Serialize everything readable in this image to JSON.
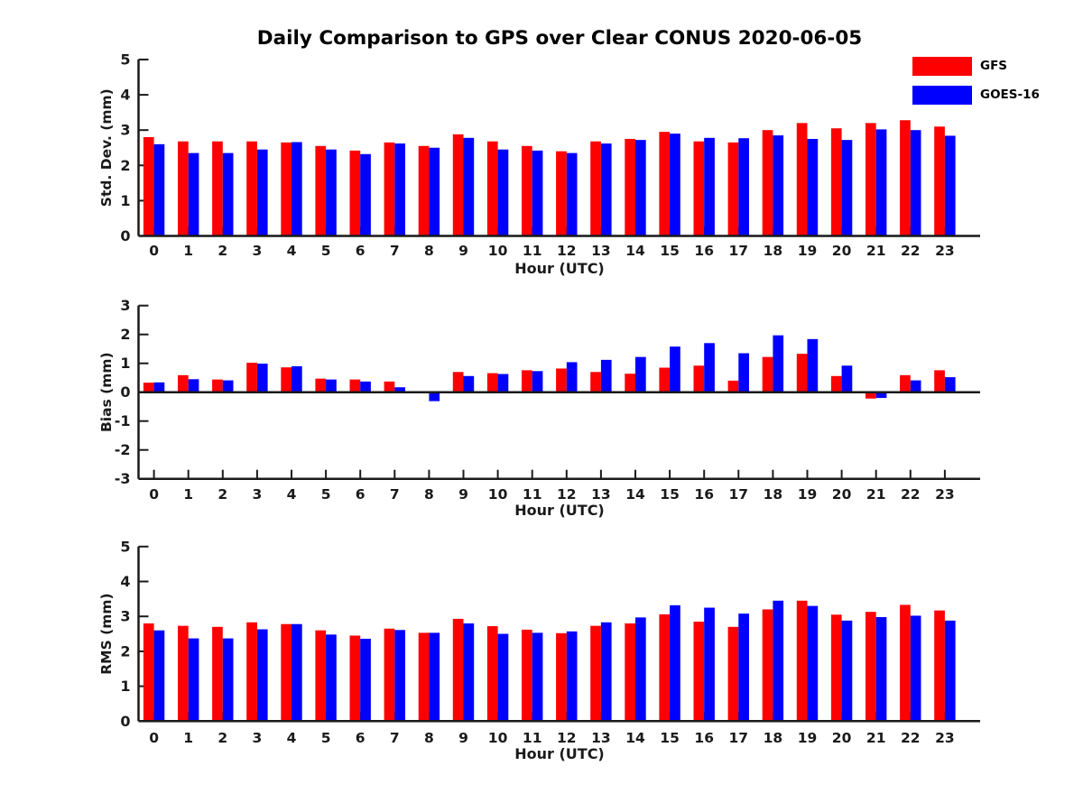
{
  "title": "Daily Comparison to GPS over Clear CONUS 2020-06-05",
  "colors": {
    "gfs": "#ff0000",
    "goes16": "#0000ff",
    "axis": "#1a1a1a",
    "background": "#ffffff"
  },
  "legend": {
    "position": "top-right",
    "items": [
      {
        "label": "GFS",
        "color": "#ff0000"
      },
      {
        "label": "GOES-16",
        "color": "#0000ff"
      }
    ]
  },
  "chart_data": [
    {
      "type": "bar",
      "panel": "stddev",
      "ylabel": "Std. Dev. (mm)",
      "xlabel": "Hour (UTC)",
      "ylim": [
        0,
        5
      ],
      "yticks": [
        0,
        1,
        2,
        3,
        4,
        5
      ],
      "grid": false,
      "categories": [
        0,
        1,
        2,
        3,
        4,
        5,
        6,
        7,
        8,
        9,
        10,
        11,
        12,
        13,
        14,
        15,
        16,
        17,
        18,
        19,
        20,
        21,
        22,
        23
      ],
      "series": [
        {
          "name": "GFS",
          "color": "#ff0000",
          "values": [
            2.8,
            2.68,
            2.68,
            2.68,
            2.65,
            2.55,
            2.42,
            2.65,
            2.55,
            2.88,
            2.68,
            2.55,
            2.4,
            2.68,
            2.75,
            2.95,
            2.68,
            2.65,
            3.0,
            3.2,
            3.05,
            3.2,
            3.28,
            3.1
          ]
        },
        {
          "name": "GOES-16",
          "color": "#0000ff",
          "values": [
            2.6,
            2.35,
            2.35,
            2.45,
            2.66,
            2.45,
            2.32,
            2.62,
            2.5,
            2.78,
            2.45,
            2.42,
            2.35,
            2.62,
            2.72,
            2.9,
            2.78,
            2.77,
            2.85,
            2.75,
            2.72,
            3.02,
            3.0,
            2.84
          ]
        }
      ]
    },
    {
      "type": "bar",
      "panel": "bias",
      "ylabel": "Bias (mm)",
      "xlabel": "Hour (UTC)",
      "ylim": [
        -3,
        3
      ],
      "yticks": [
        -3,
        -2,
        -1,
        0,
        1,
        2,
        3
      ],
      "grid": false,
      "categories": [
        0,
        1,
        2,
        3,
        4,
        5,
        6,
        7,
        8,
        9,
        10,
        11,
        12,
        13,
        14,
        15,
        16,
        17,
        18,
        19,
        20,
        21,
        22,
        23
      ],
      "series": [
        {
          "name": "GFS",
          "color": "#ff0000",
          "values": [
            0.33,
            0.59,
            0.44,
            1.02,
            0.86,
            0.47,
            0.44,
            0.37,
            0.0,
            0.7,
            0.66,
            0.76,
            0.82,
            0.7,
            0.64,
            0.85,
            0.92,
            0.4,
            1.22,
            1.33,
            0.56,
            -0.22,
            0.59,
            0.76
          ]
        },
        {
          "name": "GOES-16",
          "color": "#0000ff",
          "values": [
            0.34,
            0.45,
            0.41,
            0.99,
            0.9,
            0.44,
            0.37,
            0.17,
            -0.31,
            0.56,
            0.63,
            0.73,
            1.04,
            1.12,
            1.22,
            1.58,
            1.7,
            1.35,
            1.97,
            1.84,
            0.92,
            -0.2,
            0.41,
            0.52
          ]
        }
      ]
    },
    {
      "type": "bar",
      "panel": "rms",
      "ylabel": "RMS (mm)",
      "xlabel": "Hour (UTC)",
      "ylim": [
        0,
        5
      ],
      "yticks": [
        0,
        1,
        2,
        3,
        4,
        5
      ],
      "grid": false,
      "categories": [
        0,
        1,
        2,
        3,
        4,
        5,
        6,
        7,
        8,
        9,
        10,
        11,
        12,
        13,
        14,
        15,
        16,
        17,
        18,
        19,
        20,
        21,
        22,
        23
      ],
      "series": [
        {
          "name": "GFS",
          "color": "#ff0000",
          "values": [
            2.8,
            2.73,
            2.7,
            2.83,
            2.78,
            2.6,
            2.45,
            2.65,
            2.53,
            2.93,
            2.72,
            2.62,
            2.52,
            2.73,
            2.8,
            3.06,
            2.85,
            2.7,
            3.2,
            3.45,
            3.05,
            3.13,
            3.33,
            3.17
          ]
        },
        {
          "name": "GOES-16",
          "color": "#0000ff",
          "values": [
            2.6,
            2.37,
            2.37,
            2.63,
            2.78,
            2.48,
            2.36,
            2.61,
            2.53,
            2.8,
            2.5,
            2.53,
            2.57,
            2.83,
            2.97,
            3.32,
            3.25,
            3.08,
            3.45,
            3.3,
            2.88,
            2.98,
            3.02,
            2.88
          ]
        }
      ]
    }
  ]
}
